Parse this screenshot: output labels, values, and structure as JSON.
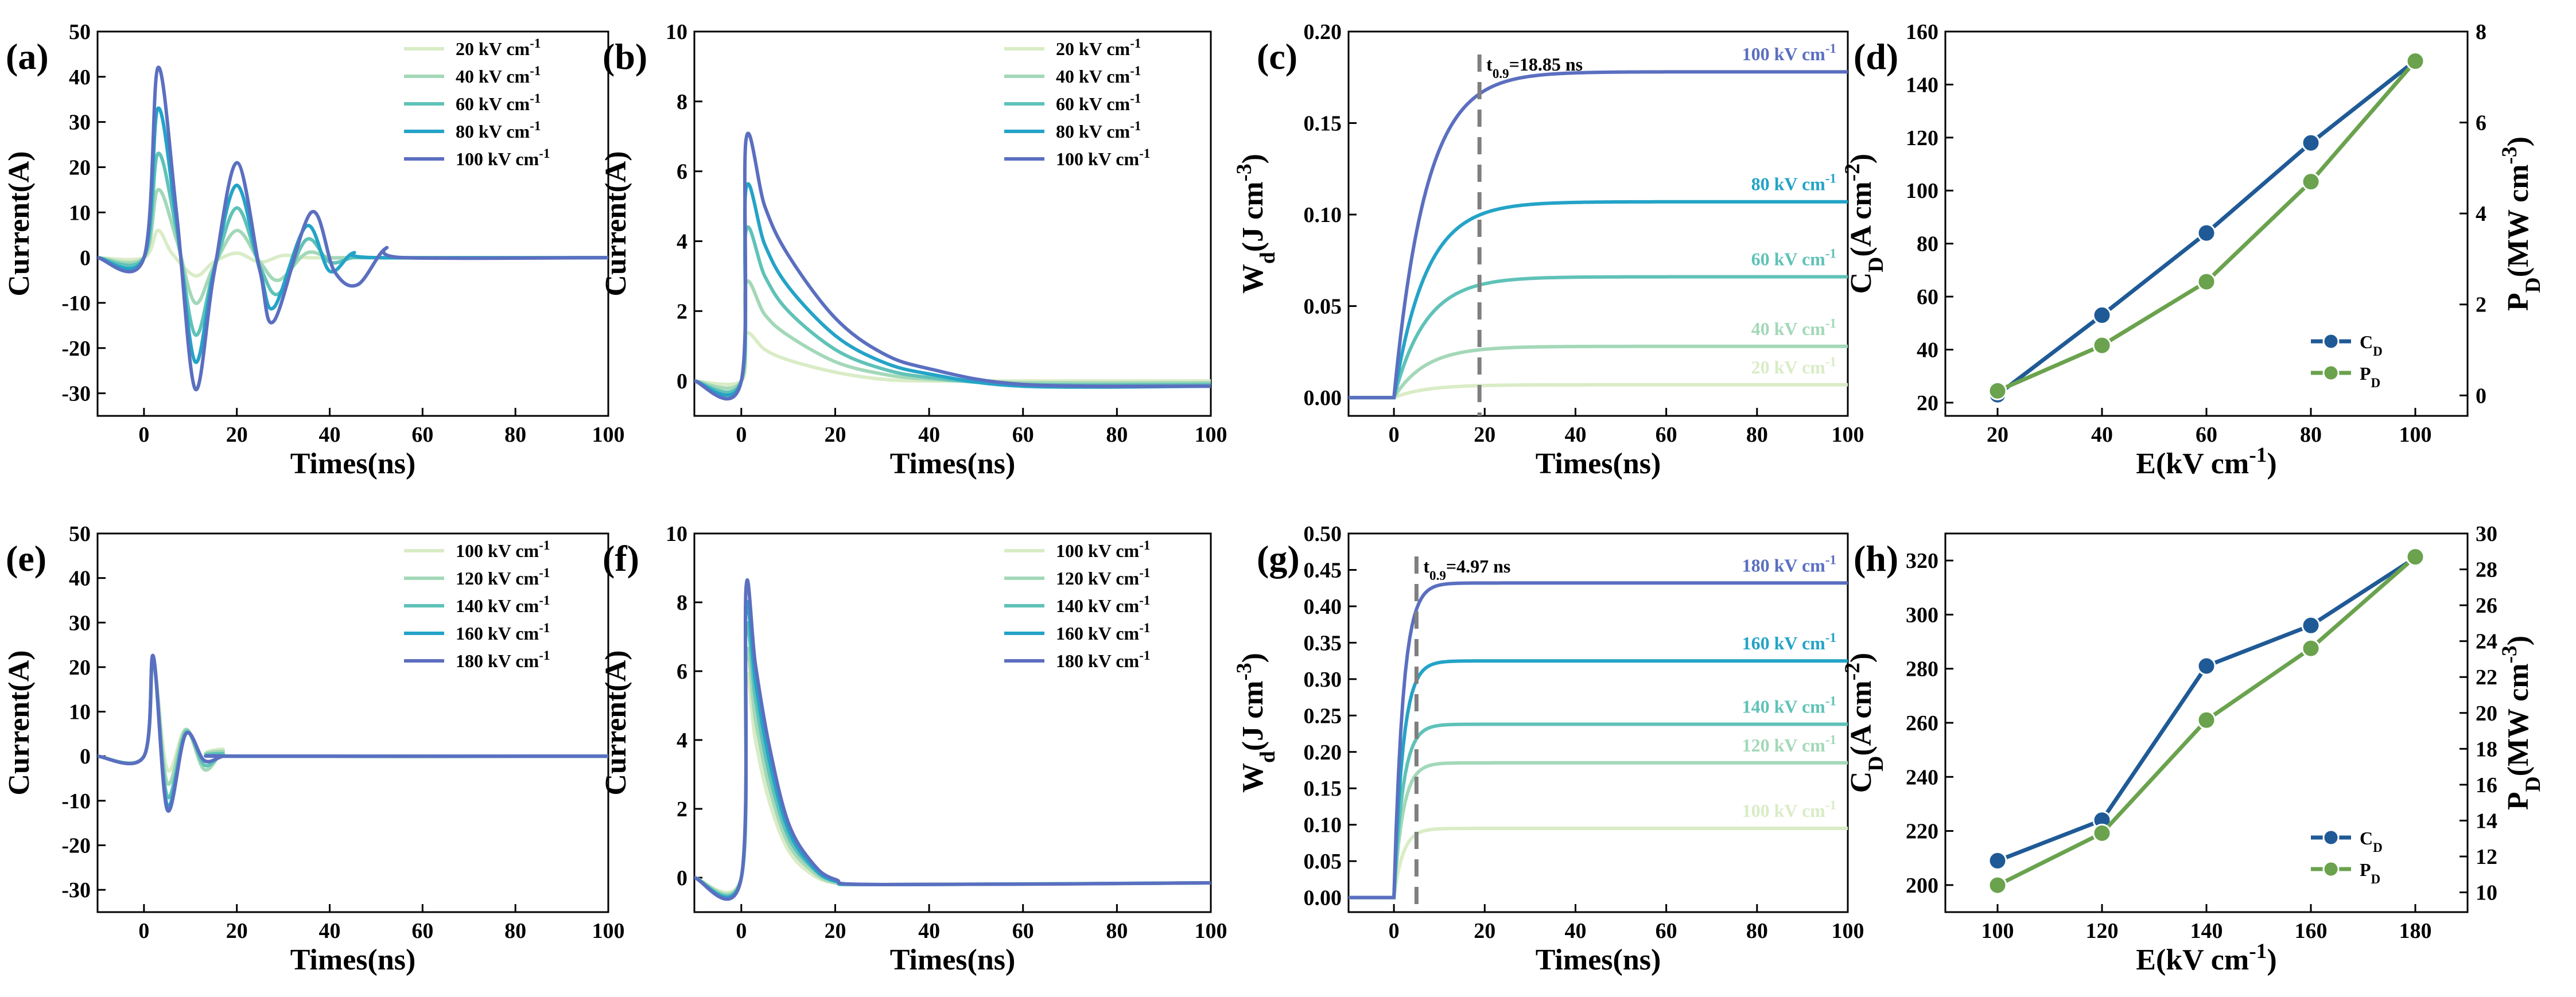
{
  "palette": {
    "s1": "#d9ecc6",
    "s2": "#a3d8b8",
    "s3": "#5fc2b8",
    "s4": "#24a3c7",
    "s5": "#5b6fc0",
    "cd": "#1f5a96",
    "pd": "#6aa24d",
    "grey": "#7f7f7f"
  },
  "chart_data": [
    {
      "panel": "(a)",
      "type": "line",
      "xlabel": "Times(ns)",
      "ylabel": "Current(A)",
      "xlim": [
        -10,
        100
      ],
      "ylim": [
        -35,
        50
      ],
      "xticks": [
        0,
        20,
        40,
        60,
        80,
        100
      ],
      "yticks": [
        -30,
        -20,
        -10,
        0,
        10,
        20,
        30,
        40,
        50
      ],
      "legend": [
        "20 kV cm⁻¹",
        "40 kV cm⁻¹",
        "60 kV cm⁻¹",
        "80 kV cm⁻¹",
        "100 kV cm⁻¹"
      ],
      "series": [
        {
          "name": "20 kV cm⁻¹",
          "x": [
            -10,
            0,
            3,
            6,
            11,
            15,
            20,
            25,
            30,
            35,
            40,
            45,
            50,
            100
          ],
          "y": [
            0,
            0,
            6,
            1,
            -4,
            -1,
            1,
            -1,
            0.5,
            0,
            0,
            0,
            0,
            0
          ]
        },
        {
          "name": "40 kV cm⁻¹",
          "x": [
            -10,
            0,
            3,
            7,
            11,
            15,
            20,
            25,
            29,
            35,
            40,
            45,
            50,
            100
          ],
          "y": [
            0,
            0,
            15,
            4,
            -10,
            -2,
            6,
            -1,
            -5,
            1,
            0,
            0,
            0,
            0
          ]
        },
        {
          "name": "60 kV cm⁻¹",
          "x": [
            -10,
            0,
            3,
            7,
            11,
            15,
            20,
            25,
            29,
            35,
            40,
            45,
            50,
            100
          ],
          "y": [
            0,
            0,
            23,
            6,
            -17,
            -3,
            11,
            -2,
            -8,
            4,
            -1,
            0,
            0,
            0
          ]
        },
        {
          "name": "80 kV cm⁻¹",
          "x": [
            -10,
            0,
            3,
            7,
            11,
            15,
            20,
            25,
            28,
            35,
            40,
            45,
            50,
            100
          ],
          "y": [
            0,
            0,
            33,
            8,
            -23,
            -3,
            16,
            -3,
            -11,
            7,
            -3,
            1,
            0,
            0
          ]
        },
        {
          "name": "100 kV cm⁻¹",
          "x": [
            -10,
            0,
            3,
            7,
            11,
            15,
            20,
            25,
            28,
            36,
            41,
            46,
            52,
            56,
            100
          ],
          "y": [
            0,
            0,
            42,
            10,
            -29,
            -4,
            21,
            -3,
            -14,
            10,
            -3,
            -6,
            2,
            0,
            0
          ]
        }
      ]
    },
    {
      "panel": "(b)",
      "type": "line",
      "xlabel": "Times(ns)",
      "ylabel": "Current(A)",
      "xlim": [
        -10,
        100
      ],
      "ylim": [
        -1,
        10
      ],
      "xticks": [
        0,
        20,
        40,
        60,
        80,
        100
      ],
      "yticks": [
        0,
        2,
        4,
        6,
        8,
        10
      ],
      "legend": [
        "20 kV cm⁻¹",
        "40 kV cm⁻¹",
        "60 kV cm⁻¹",
        "80 kV cm⁻¹",
        "100 kV cm⁻¹"
      ],
      "series": [
        {
          "name": "20 kV cm⁻¹",
          "x": [
            -10,
            0,
            1,
            5,
            10,
            20,
            30,
            40,
            60,
            100
          ],
          "y": [
            0,
            0,
            1.35,
            0.9,
            0.6,
            0.25,
            0.05,
            0,
            0,
            0
          ]
        },
        {
          "name": "40 kV cm⁻¹",
          "x": [
            -10,
            0,
            1,
            5,
            10,
            20,
            30,
            40,
            60,
            100
          ],
          "y": [
            0,
            0,
            2.8,
            1.9,
            1.3,
            0.55,
            0.2,
            0.05,
            -0.05,
            -0.05
          ]
        },
        {
          "name": "60 kV cm⁻¹",
          "x": [
            -10,
            0,
            1,
            5,
            10,
            20,
            30,
            40,
            60,
            100
          ],
          "y": [
            0,
            0,
            4.3,
            3.0,
            2.0,
            0.9,
            0.35,
            0.1,
            -0.1,
            -0.1
          ]
        },
        {
          "name": "80 kV cm⁻¹",
          "x": [
            -10,
            0,
            1,
            5,
            10,
            20,
            30,
            40,
            60,
            100
          ],
          "y": [
            0,
            0,
            5.5,
            3.9,
            2.7,
            1.3,
            0.55,
            0.2,
            -0.15,
            -0.15
          ]
        },
        {
          "name": "100 kV cm⁻¹",
          "x": [
            -10,
            0,
            1,
            5,
            10,
            20,
            30,
            40,
            60,
            100
          ],
          "y": [
            0,
            0,
            6.9,
            5.0,
            3.6,
            1.8,
            0.8,
            0.35,
            -0.1,
            -0.15
          ]
        }
      ]
    },
    {
      "panel": "(c)",
      "type": "line",
      "xlabel": "Times(ns)",
      "ylabel": "Wd(J cm⁻³)",
      "xlim": [
        -10,
        100
      ],
      "ylim": [
        -0.01,
        0.2
      ],
      "xticks": [
        0,
        20,
        40,
        60,
        80,
        100
      ],
      "yticks": [
        0,
        0.05,
        0.1,
        0.15,
        0.2
      ],
      "ytick_labels": [
        "0.00",
        "0.05",
        "0.10",
        "0.15",
        "0.20"
      ],
      "annotation": {
        "text": "t0.9=18.85 ns",
        "x": 18.85
      },
      "series": [
        {
          "name": "20 kV cm⁻¹",
          "final": 0.007,
          "tau": 7
        },
        {
          "name": "40 kV cm⁻¹",
          "final": 0.028,
          "tau": 7
        },
        {
          "name": "60 kV cm⁻¹",
          "final": 0.066,
          "tau": 7
        },
        {
          "name": "80 kV cm⁻¹",
          "final": 0.107,
          "tau": 7
        },
        {
          "name": "100 kV cm⁻¹",
          "final": 0.178,
          "tau": 7
        }
      ]
    },
    {
      "panel": "(d)",
      "type": "line",
      "xlabel": "E(kV cm⁻¹)",
      "ylabel": "CD(A cm⁻²)",
      "y2label": "PD(MW cm⁻³)",
      "x": [
        20,
        40,
        60,
        80,
        100
      ],
      "xlim": [
        10,
        110
      ],
      "ylim": [
        15,
        160
      ],
      "yticks": [
        20,
        40,
        60,
        80,
        100,
        120,
        140,
        160
      ],
      "y2lim": [
        -0.45,
        8
      ],
      "y2ticks": [
        0,
        2,
        4,
        6,
        8
      ],
      "legend": [
        "CD",
        "PD"
      ],
      "series": [
        {
          "name": "CD",
          "axis": "left",
          "values": [
            23,
            53,
            84,
            118,
            149
          ]
        },
        {
          "name": "PD",
          "axis": "right",
          "values": [
            0.1,
            1.1,
            2.5,
            4.7,
            7.35
          ]
        }
      ]
    },
    {
      "panel": "(e)",
      "type": "line",
      "xlabel": "Times(ns)",
      "ylabel": "Current(A)",
      "xlim": [
        -10,
        100
      ],
      "ylim": [
        -35,
        50
      ],
      "xticks": [
        0,
        20,
        40,
        60,
        80,
        100
      ],
      "yticks": [
        -30,
        -20,
        -10,
        0,
        10,
        20,
        30,
        40,
        50
      ],
      "legend": [
        "100 kV cm⁻¹",
        "120 kV cm⁻¹",
        "140 kV cm⁻¹",
        "160 kV cm⁻¹",
        "180 kV cm⁻¹"
      ],
      "series": [
        {
          "name": "100 kV cm⁻¹",
          "x": [
            -10,
            0,
            2,
            5,
            9,
            13,
            17,
            20,
            100
          ],
          "y": [
            0,
            0,
            21,
            -3,
            6,
            -3,
            1.5,
            0,
            0
          ]
        },
        {
          "name": "120 kV cm⁻¹",
          "x": [
            -10,
            0,
            2,
            5,
            9,
            13,
            17,
            20,
            100
          ],
          "y": [
            0,
            0,
            21,
            -6,
            6,
            -3,
            1,
            0,
            0
          ]
        },
        {
          "name": "140 kV cm⁻¹",
          "x": [
            -10,
            0,
            2,
            5,
            9,
            13,
            17,
            20,
            100
          ],
          "y": [
            0,
            0,
            22,
            -9,
            5.5,
            -2,
            0.5,
            0,
            0
          ]
        },
        {
          "name": "160 kV cm⁻¹",
          "x": [
            -10,
            0,
            2,
            5,
            9,
            13,
            17,
            20,
            100
          ],
          "y": [
            0,
            0,
            22,
            -11,
            5,
            -1,
            0,
            0,
            0
          ]
        },
        {
          "name": "180 kV cm⁻¹",
          "x": [
            -10,
            0,
            2,
            5,
            9,
            13,
            17,
            20,
            100
          ],
          "y": [
            0,
            0,
            22.5,
            -12,
            5,
            -1,
            0,
            0,
            0
          ]
        }
      ]
    },
    {
      "panel": "(f)",
      "type": "line",
      "xlabel": "Times(ns)",
      "ylabel": "Current(A)",
      "xlim": [
        -10,
        100
      ],
      "ylim": [
        -1,
        10
      ],
      "xticks": [
        0,
        20,
        40,
        60,
        80,
        100
      ],
      "yticks": [
        0,
        2,
        4,
        6,
        8,
        10
      ],
      "legend": [
        "100 kV cm⁻¹",
        "120 kV cm⁻¹",
        "140 kV cm⁻¹",
        "160 kV cm⁻¹",
        "180 kV cm⁻¹"
      ],
      "series": [
        {
          "name": "100 kV cm⁻¹",
          "x": [
            -10,
            0,
            1,
            3,
            6,
            10,
            15,
            20,
            30,
            100
          ],
          "y": [
            0,
            0,
            5.8,
            4.0,
            2.2,
            0.8,
            0.1,
            -0.15,
            -0.2,
            -0.15
          ]
        },
        {
          "name": "120 kV cm⁻¹",
          "x": [
            -10,
            0,
            1,
            3,
            6,
            10,
            15,
            20,
            30,
            100
          ],
          "y": [
            0,
            0,
            6.5,
            4.6,
            2.6,
            1.0,
            0.2,
            -0.15,
            -0.2,
            -0.15
          ]
        },
        {
          "name": "140 kV cm⁻¹",
          "x": [
            -10,
            0,
            1,
            3,
            6,
            10,
            15,
            20,
            30,
            100
          ],
          "y": [
            0,
            0,
            7.2,
            5.2,
            3.0,
            1.2,
            0.3,
            -0.1,
            -0.2,
            -0.15
          ]
        },
        {
          "name": "160 kV cm⁻¹",
          "x": [
            -10,
            0,
            1,
            3,
            6,
            10,
            15,
            20,
            30,
            100
          ],
          "y": [
            0,
            0,
            7.8,
            5.7,
            3.4,
            1.4,
            0.35,
            -0.1,
            -0.2,
            -0.15
          ]
        },
        {
          "name": "180 kV cm⁻¹",
          "x": [
            -10,
            0,
            1,
            3,
            6,
            10,
            15,
            20,
            30,
            100
          ],
          "y": [
            0,
            0,
            8.4,
            6.2,
            3.8,
            1.6,
            0.45,
            -0.05,
            -0.2,
            -0.15
          ]
        }
      ]
    },
    {
      "panel": "(g)",
      "type": "line",
      "xlabel": "Times(ns)",
      "ylabel": "Wd(J cm⁻³)",
      "xlim": [
        -10,
        100
      ],
      "ylim": [
        -0.02,
        0.5
      ],
      "xticks": [
        0,
        20,
        40,
        60,
        80,
        100
      ],
      "yticks": [
        0,
        0.05,
        0.1,
        0.15,
        0.2,
        0.25,
        0.3,
        0.35,
        0.4,
        0.45,
        0.5
      ],
      "ytick_labels": [
        "0.00",
        "0.05",
        "0.10",
        "0.15",
        "0.20",
        "0.25",
        "0.30",
        "0.35",
        "0.40",
        "0.45",
        "0.50"
      ],
      "annotation": {
        "text": "t0.9=4.97 ns",
        "x": 4.97
      },
      "series": [
        {
          "name": "100 kV cm⁻¹",
          "final": 0.095,
          "tau": 2
        },
        {
          "name": "120 kV cm⁻¹",
          "final": 0.185,
          "tau": 2
        },
        {
          "name": "140 kV cm⁻¹",
          "final": 0.238,
          "tau": 2
        },
        {
          "name": "160 kV cm⁻¹",
          "final": 0.325,
          "tau": 2
        },
        {
          "name": "180 kV cm⁻¹",
          "final": 0.432,
          "tau": 2
        }
      ]
    },
    {
      "panel": "(h)",
      "type": "line",
      "xlabel": "E(kV cm⁻¹)",
      "ylabel": "CD(A cm⁻²)",
      "y2label": "PD(MW cm⁻³)",
      "x": [
        100,
        120,
        140,
        160,
        180
      ],
      "xlim": [
        90,
        190
      ],
      "ylim": [
        190,
        330
      ],
      "yticks": [
        200,
        220,
        240,
        260,
        280,
        300,
        320
      ],
      "y2lim": [
        8.9,
        30
      ],
      "y2ticks": [
        10,
        12,
        14,
        16,
        18,
        20,
        22,
        24,
        26,
        28,
        30
      ],
      "legend": [
        "CD",
        "PD"
      ],
      "series": [
        {
          "name": "CD",
          "axis": "left",
          "values": [
            209,
            224,
            281,
            296,
            321
          ]
        },
        {
          "name": "PD",
          "axis": "right",
          "values": [
            10.4,
            13.3,
            19.6,
            23.6,
            28.7
          ]
        }
      ]
    }
  ]
}
